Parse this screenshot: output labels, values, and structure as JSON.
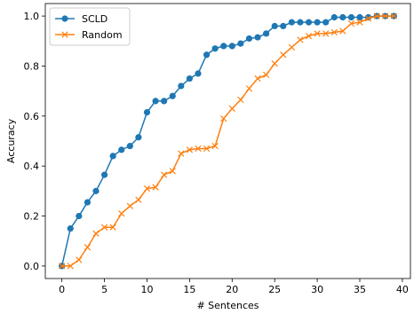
{
  "chart_data": {
    "type": "line",
    "xlabel": "# Sentences",
    "ylabel": "Accuracy",
    "xlim": [
      -1.95,
      40.95
    ],
    "ylim": [
      -0.05,
      1.05
    ],
    "xticks": [
      0,
      5,
      10,
      15,
      20,
      25,
      30,
      35,
      40
    ],
    "yticks": [
      0.0,
      0.2,
      0.4,
      0.6,
      0.8,
      1.0
    ],
    "xtick_labels": [
      "0",
      "5",
      "10",
      "15",
      "20",
      "25",
      "30",
      "35",
      "40"
    ],
    "ytick_labels": [
      "0.0",
      "0.2",
      "0.4",
      "0.6",
      "0.8",
      "1.0"
    ],
    "grid": false,
    "legend_position": "top-left",
    "x": [
      0,
      1,
      2,
      3,
      4,
      5,
      6,
      7,
      8,
      9,
      10,
      11,
      12,
      13,
      14,
      15,
      16,
      17,
      18,
      19,
      20,
      21,
      22,
      23,
      24,
      25,
      26,
      27,
      28,
      29,
      30,
      31,
      32,
      33,
      34,
      35,
      36,
      37,
      38,
      39
    ],
    "series": [
      {
        "name": "SCLD",
        "color": "#1f77b4",
        "marker": "circle",
        "values": [
          0.0,
          0.15,
          0.2,
          0.255,
          0.3,
          0.365,
          0.44,
          0.465,
          0.48,
          0.515,
          0.615,
          0.66,
          0.66,
          0.68,
          0.72,
          0.75,
          0.77,
          0.845,
          0.87,
          0.88,
          0.88,
          0.89,
          0.91,
          0.915,
          0.93,
          0.96,
          0.96,
          0.975,
          0.975,
          0.975,
          0.975,
          0.975,
          0.995,
          0.995,
          0.995,
          0.995,
          0.995,
          1.0,
          1.0,
          1.0
        ]
      },
      {
        "name": "Random",
        "color": "#ff7f0e",
        "marker": "x",
        "values": [
          0.0,
          0.0,
          0.025,
          0.075,
          0.13,
          0.155,
          0.155,
          0.21,
          0.24,
          0.265,
          0.31,
          0.315,
          0.365,
          0.38,
          0.45,
          0.465,
          0.47,
          0.47,
          0.48,
          0.59,
          0.63,
          0.665,
          0.71,
          0.75,
          0.765,
          0.81,
          0.845,
          0.875,
          0.905,
          0.92,
          0.93,
          0.93,
          0.935,
          0.94,
          0.97,
          0.975,
          0.99,
          1.0,
          1.0,
          1.0
        ]
      }
    ]
  }
}
